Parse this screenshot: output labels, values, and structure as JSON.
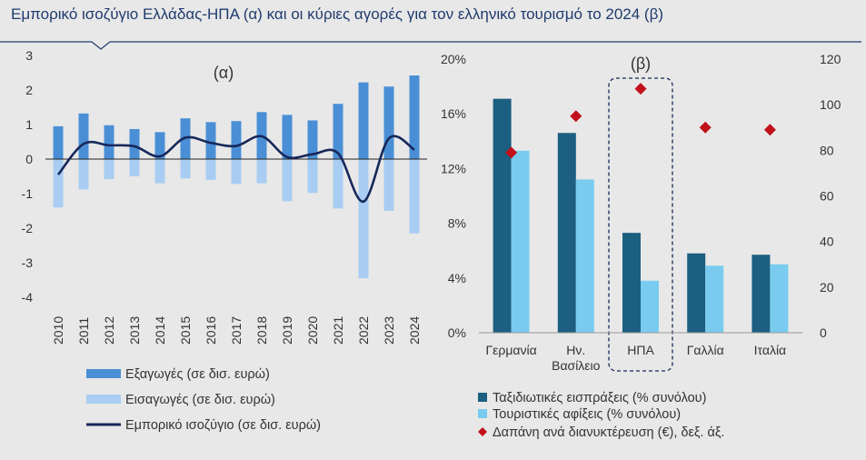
{
  "title": "Εμπορικό ισοζύγιο Ελλάδας-ΗΠΑ (α) και οι κύριες αγορές για τον ελληνικό τουρισμό το 2024 (β)",
  "colors": {
    "exports": "#4a8fd6",
    "imports": "#a9cdf2",
    "balance": "#16285a",
    "receipts": "#1c5f80",
    "arrivals": "#79ccef",
    "spending": "#c0101a",
    "title": "#1f3b6e"
  },
  "chart_data": [
    {
      "type": "bar",
      "panel_label": "(α)",
      "categories": [
        "2010",
        "2011",
        "2012",
        "2013",
        "2014",
        "2015",
        "2016",
        "2017",
        "2018",
        "2019",
        "2020",
        "2021",
        "2022",
        "2023",
        "2024"
      ],
      "series": [
        {
          "name": "Εξαγωγές (σε δισ. ευρώ)",
          "type": "bar",
          "values": [
            0.95,
            1.32,
            0.98,
            0.87,
            0.78,
            1.18,
            1.07,
            1.1,
            1.36,
            1.28,
            1.12,
            1.6,
            2.22,
            2.1,
            2.42
          ]
        },
        {
          "name": "Εισαγωγές (σε δισ. ευρώ)",
          "type": "bar",
          "values": [
            -1.4,
            -0.88,
            -0.58,
            -0.5,
            -0.7,
            -0.56,
            -0.6,
            -0.72,
            -0.7,
            -1.22,
            -0.98,
            -1.43,
            -3.45,
            -1.5,
            -2.15
          ]
        },
        {
          "name": "Εμπορικό ισοζύγιο (σε δισ. ευρώ)",
          "type": "line",
          "values": [
            -0.45,
            0.44,
            0.4,
            0.37,
            0.08,
            0.62,
            0.47,
            0.38,
            0.66,
            0.06,
            0.14,
            0.17,
            -1.23,
            0.6,
            0.27
          ]
        }
      ],
      "y_ticks": [
        "3",
        "2",
        "1",
        "0",
        "-1",
        "-2",
        "-3",
        "-4"
      ],
      "ylim": [
        -4,
        3
      ]
    },
    {
      "type": "bar",
      "panel_label": "(β)",
      "categories": [
        "Γερμανία",
        "Ην. Βασίλειο",
        "ΗΠΑ",
        "Γαλλία",
        "Ιταλία"
      ],
      "category_lines": [
        [
          "Γερμανία"
        ],
        [
          "Ην.",
          "Βασίλειο"
        ],
        [
          "ΗΠΑ"
        ],
        [
          "Γαλλία"
        ],
        [
          "Ιταλία"
        ]
      ],
      "highlight_category": "ΗΠΑ",
      "series": [
        {
          "name": "Ταξιδιωτικές εισπράξεις (% συνόλου)",
          "type": "bar",
          "axis": "left",
          "values": [
            17.1,
            14.6,
            7.3,
            5.8,
            5.7
          ]
        },
        {
          "name": "Τουριστικές αφίξεις (% συνόλου)",
          "type": "bar",
          "axis": "left",
          "values": [
            13.3,
            11.2,
            3.8,
            4.9,
            5.0
          ]
        },
        {
          "name": "Δαπάνη ανά διανυκτέρευση (€), δεξ. άξ.",
          "type": "scatter",
          "axis": "right",
          "values": [
            79,
            95,
            107,
            90,
            89
          ]
        }
      ],
      "y_left_ticks": [
        "20%",
        "16%",
        "12%",
        "8%",
        "4%",
        "0%"
      ],
      "y_right_ticks": [
        "120",
        "100",
        "80",
        "60",
        "40",
        "20",
        "0"
      ],
      "ylim_left": [
        0,
        20
      ],
      "ylim_right": [
        0,
        120
      ]
    }
  ]
}
